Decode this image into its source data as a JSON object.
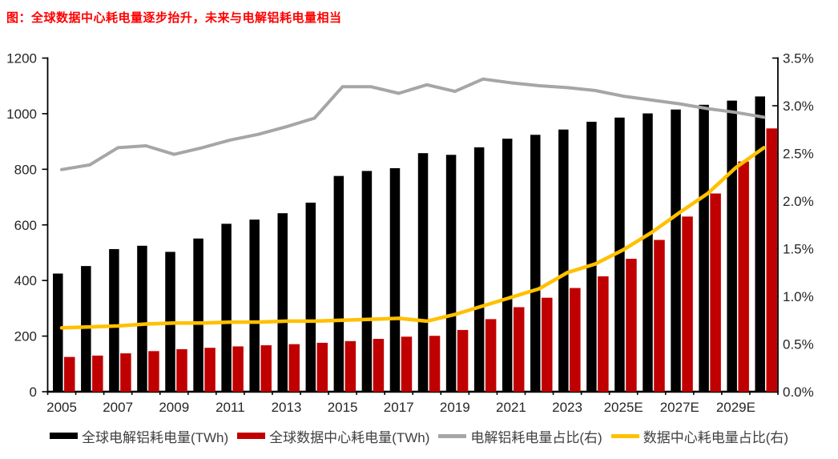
{
  "title": "图：全球数据中心耗电量逐步抬升，未来与电解铝耗电量相当",
  "colors": {
    "title": "#FF0000",
    "aluminum_bar": "#000000",
    "datacenter_bar": "#C00000",
    "aluminum_share_line": "#A6A6A6",
    "datacenter_share_line": "#FFC000",
    "axis": "#000000",
    "tick_label": "#262626",
    "legend_text": "#404040",
    "background": "#FFFFFF"
  },
  "chart_data": {
    "type": "bar",
    "subtype": "combo-bar-line-dual-axis",
    "title": "图：全球数据中心耗电量逐步抬升，未来与电解铝耗电量相当",
    "categories": [
      "2005",
      "2006",
      "2007",
      "2008",
      "2009",
      "2010",
      "2011",
      "2012",
      "2013",
      "2014",
      "2015",
      "2016",
      "2017",
      "2018",
      "2019",
      "2020",
      "2021",
      "2022",
      "2023",
      "2024",
      "2025E",
      "2026E",
      "2027E",
      "2028E",
      "2029E",
      "2030E"
    ],
    "x_tick_labels": [
      "2005",
      "2007",
      "2009",
      "2011",
      "2013",
      "2015",
      "2017",
      "2019",
      "2021",
      "2023",
      "2025E",
      "2027E",
      "2029E"
    ],
    "x_tick_label_every": 2,
    "left_axis": {
      "min": 0,
      "max": 1200,
      "ticks": [
        0,
        200,
        400,
        600,
        800,
        1000,
        1200
      ]
    },
    "right_axis": {
      "min": 0,
      "max": 3.5,
      "ticks": [
        "0.0%",
        "0.5%",
        "1.0%",
        "1.5%",
        "2.0%",
        "2.5%",
        "3.0%",
        "3.5%"
      ]
    },
    "grid": false,
    "legend_position": "bottom",
    "series": [
      {
        "name": "全球电解铝耗电量(TWh)",
        "type": "bar",
        "axis": "left",
        "color": "#000000",
        "values": [
          425,
          452,
          513,
          525,
          503,
          551,
          604,
          619,
          642,
          680,
          776,
          794,
          804,
          858,
          852,
          879,
          910,
          924,
          943,
          971,
          986,
          1001,
          1015,
          1032,
          1047,
          1062
        ]
      },
      {
        "name": "全球数据中心耗电量(TWh)",
        "type": "bar",
        "axis": "left",
        "color": "#C00000",
        "values": [
          125,
          130,
          138,
          146,
          153,
          158,
          163,
          167,
          171,
          176,
          182,
          190,
          198,
          201,
          222,
          261,
          304,
          338,
          373,
          415,
          478,
          546,
          630,
          713,
          828,
          947
        ]
      },
      {
        "name": "电解铝耗电量占比(右)",
        "type": "line",
        "axis": "right",
        "unit": "%",
        "color": "#A6A6A6",
        "values": [
          2.33,
          2.38,
          2.56,
          2.58,
          2.49,
          2.56,
          2.64,
          2.7,
          2.78,
          2.87,
          3.2,
          3.2,
          3.13,
          3.22,
          3.15,
          3.28,
          3.24,
          3.21,
          3.19,
          3.16,
          3.1,
          3.06,
          3.02,
          2.97,
          2.93,
          2.88
        ]
      },
      {
        "name": "数据中心耗电量占比(右)",
        "type": "line",
        "axis": "right",
        "unit": "%",
        "color": "#FFC000",
        "values": [
          0.67,
          0.68,
          0.69,
          0.71,
          0.72,
          0.72,
          0.73,
          0.73,
          0.74,
          0.74,
          0.75,
          0.76,
          0.77,
          0.74,
          0.81,
          0.9,
          0.99,
          1.08,
          1.25,
          1.34,
          1.49,
          1.67,
          1.88,
          2.08,
          2.35,
          2.56
        ]
      }
    ]
  },
  "legend": {
    "items": [
      {
        "label": "全球电解铝耗电量(TWh)",
        "swatch": "bar",
        "color": "#000000"
      },
      {
        "label": "全球数据中心耗电量(TWh)",
        "swatch": "bar",
        "color": "#C00000"
      },
      {
        "label": "电解铝耗电量占比(右)",
        "swatch": "line",
        "color": "#A6A6A6"
      },
      {
        "label": "数据中心耗电量占比(右)",
        "swatch": "line",
        "color": "#FFC000"
      }
    ]
  }
}
